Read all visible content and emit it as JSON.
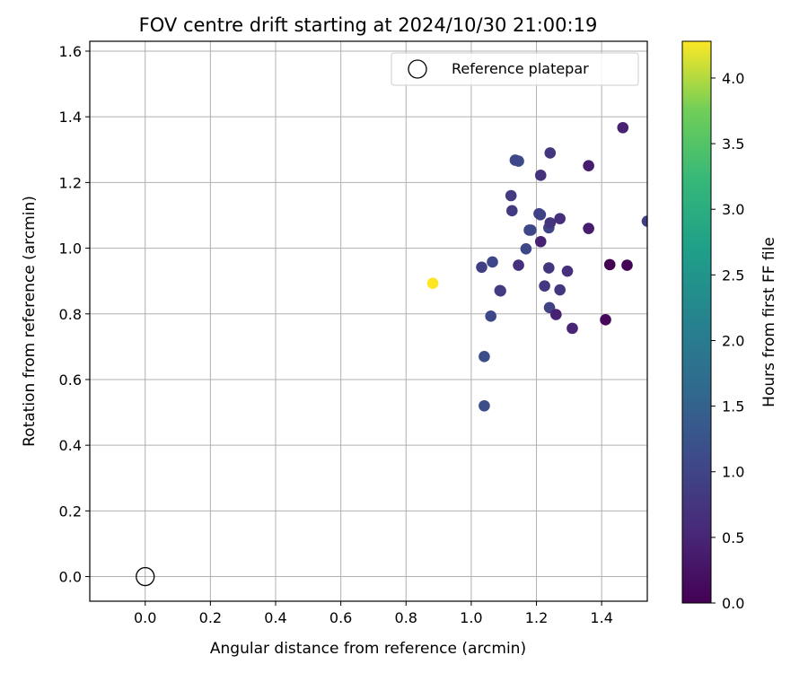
{
  "chart_data": {
    "type": "scatter",
    "title": "FOV centre drift starting at 2024/10/30 21:00:19",
    "xlabel": "Angular distance from reference (arcmin)",
    "ylabel": "Rotation from reference (arcmin)",
    "xlim": [
      -0.17,
      1.54
    ],
    "ylim": [
      -0.075,
      1.63
    ],
    "xticks": [
      0.0,
      0.2,
      0.4,
      0.6,
      0.8,
      1.0,
      1.2,
      1.4
    ],
    "xtick_labels": [
      "0.0",
      "0.2",
      "0.4",
      "0.6",
      "0.8",
      "1.0",
      "1.2",
      "1.4"
    ],
    "yticks": [
      0.0,
      0.2,
      0.4,
      0.6,
      0.8,
      1.0,
      1.2,
      1.4,
      1.6
    ],
    "ytick_labels": [
      "0.0",
      "0.2",
      "0.4",
      "0.6",
      "0.8",
      "1.0",
      "1.2",
      "1.4",
      "1.6"
    ],
    "grid": true,
    "legend": {
      "placement": "top-right",
      "entries": [
        {
          "label": "Reference platepar",
          "marker": "hollow-circle"
        }
      ]
    },
    "colorbar": {
      "label": "Hours from first FF file",
      "colormap": "viridis",
      "range": [
        0.0,
        4.28
      ],
      "ticks": [
        0.0,
        0.5,
        1.0,
        1.5,
        2.0,
        2.5,
        3.0,
        3.5,
        4.0
      ],
      "tick_labels": [
        "0.0",
        "0.5",
        "1.0",
        "1.5",
        "2.0",
        "2.5",
        "3.0",
        "3.5",
        "4.0"
      ]
    },
    "reference_point": {
      "x": 0.0,
      "y": 0.0,
      "label": "Reference platepar"
    },
    "points": [
      {
        "x": 1.465,
        "y": 1.367,
        "hours": 0.45
      },
      {
        "x": 1.36,
        "y": 1.251,
        "hours": 0.4
      },
      {
        "x": 1.242,
        "y": 1.29,
        "hours": 0.75
      },
      {
        "x": 1.135,
        "y": 1.268,
        "hours": 1.05
      },
      {
        "x": 1.145,
        "y": 1.265,
        "hours": 1.1
      },
      {
        "x": 1.213,
        "y": 1.222,
        "hours": 0.7
      },
      {
        "x": 1.122,
        "y": 1.16,
        "hours": 0.85
      },
      {
        "x": 1.125,
        "y": 1.114,
        "hours": 0.85
      },
      {
        "x": 1.208,
        "y": 1.105,
        "hours": 0.95
      },
      {
        "x": 1.212,
        "y": 1.102,
        "hours": 0.95
      },
      {
        "x": 1.242,
        "y": 1.077,
        "hours": 0.75
      },
      {
        "x": 1.272,
        "y": 1.09,
        "hours": 0.65
      },
      {
        "x": 1.238,
        "y": 1.062,
        "hours": 1.0
      },
      {
        "x": 1.178,
        "y": 1.055,
        "hours": 1.05
      },
      {
        "x": 1.183,
        "y": 1.055,
        "hours": 1.05
      },
      {
        "x": 1.36,
        "y": 1.06,
        "hours": 0.4
      },
      {
        "x": 1.54,
        "y": 1.082,
        "hours": 0.9
      },
      {
        "x": 1.213,
        "y": 1.02,
        "hours": 0.45
      },
      {
        "x": 1.168,
        "y": 0.998,
        "hours": 1.05
      },
      {
        "x": 1.032,
        "y": 0.942,
        "hours": 0.9
      },
      {
        "x": 1.065,
        "y": 0.958,
        "hours": 1.05
      },
      {
        "x": 1.145,
        "y": 0.948,
        "hours": 0.65
      },
      {
        "x": 1.238,
        "y": 0.94,
        "hours": 0.75
      },
      {
        "x": 1.295,
        "y": 0.93,
        "hours": 0.65
      },
      {
        "x": 1.425,
        "y": 0.95,
        "hours": 0.0
      },
      {
        "x": 1.478,
        "y": 0.948,
        "hours": 0.05
      },
      {
        "x": 0.882,
        "y": 0.893,
        "hours": 4.28
      },
      {
        "x": 1.088,
        "y": 0.871,
        "hours": 0.85
      },
      {
        "x": 1.09,
        "y": 0.87,
        "hours": 0.85
      },
      {
        "x": 1.225,
        "y": 0.885,
        "hours": 0.8
      },
      {
        "x": 1.272,
        "y": 0.873,
        "hours": 0.75
      },
      {
        "x": 1.24,
        "y": 0.819,
        "hours": 0.95
      },
      {
        "x": 1.26,
        "y": 0.798,
        "hours": 0.45
      },
      {
        "x": 1.06,
        "y": 0.793,
        "hours": 1.05
      },
      {
        "x": 1.31,
        "y": 0.756,
        "hours": 0.5
      },
      {
        "x": 1.412,
        "y": 0.782,
        "hours": 0.1
      },
      {
        "x": 1.04,
        "y": 0.67,
        "hours": 1.15
      },
      {
        "x": 1.04,
        "y": 0.52,
        "hours": 1.15
      }
    ]
  }
}
